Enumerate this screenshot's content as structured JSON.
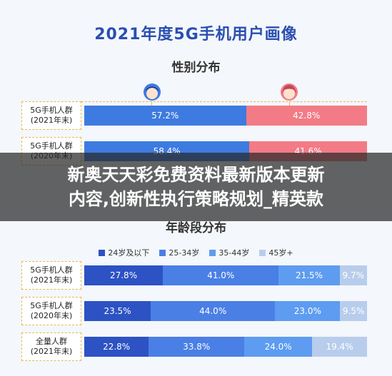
{
  "title": "2021年度5G手机用户画像",
  "banner": {
    "line1": "新奥天天彩免费资料最新版本更新",
    "line2": "内容,创新性执行策略规划_精英款"
  },
  "chart_data": [
    {
      "type": "bar",
      "title": "性别分布",
      "categories": [
        "5G手机人群（2021年末）",
        "5G手机人群（2020年末）"
      ],
      "category_lines": [
        [
          "5G手机人群",
          "(2021年末)"
        ],
        [
          "5G手机人群",
          "(2020年末)"
        ]
      ],
      "series": [
        {
          "values": [
            57.2,
            58.4
          ],
          "labels": [
            "57.2%",
            "58.4%"
          ],
          "color": "#3e7be0"
        },
        {
          "values": [
            42.8,
            41.6
          ],
          "labels": [
            "42.8%",
            "41.6%"
          ],
          "color": "#f27b86"
        }
      ],
      "icons": [
        "male-avatar-icon",
        "female-avatar-icon"
      ]
    },
    {
      "type": "bar",
      "title": "年龄段分布",
      "categories": [
        "5G手机人群（2021年末）",
        "5G手机人群（2020年末）",
        "全量人群（2021年末）"
      ],
      "category_lines": [
        [
          "5G手机人群",
          "(2021年末)"
        ],
        [
          "5G手机人群",
          "(2020年末)"
        ],
        [
          "全量人群",
          "(2021年末)"
        ]
      ],
      "legend": [
        "24岁及以下",
        "25-34岁",
        "35-44岁",
        "45岁+"
      ],
      "legend_position": "top",
      "series": [
        {
          "name": "24岁及以下",
          "values": [
            27.8,
            23.5,
            22.8
          ],
          "labels": [
            "27.8%",
            "23.5%",
            "22.8%"
          ],
          "color": "#2c52c4"
        },
        {
          "name": "25-34岁",
          "values": [
            41.0,
            44.0,
            33.8
          ],
          "labels": [
            "41.0%",
            "44.0%",
            "33.8%"
          ],
          "color": "#4a7fe6"
        },
        {
          "name": "35-44岁",
          "values": [
            21.5,
            23.0,
            24.0
          ],
          "labels": [
            "21.5%",
            "23.0%",
            "24.0%"
          ],
          "color": "#5d9cf0"
        },
        {
          "name": "45岁+",
          "values": [
            9.7,
            9.5,
            19.4
          ],
          "labels": [
            "9.7%",
            "9.5%",
            "19.4%"
          ],
          "color": "#b8cdec"
        }
      ]
    }
  ]
}
